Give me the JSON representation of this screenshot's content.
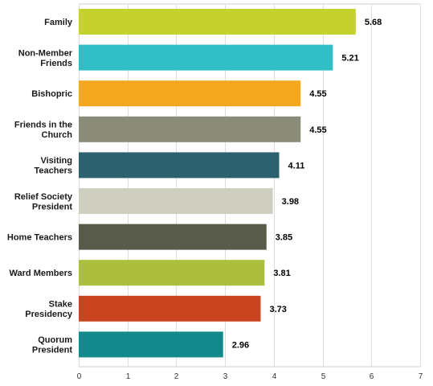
{
  "chart_data": {
    "type": "bar",
    "orientation": "horizontal",
    "categories": [
      [
        "Family"
      ],
      [
        "Non-Member",
        "Friends"
      ],
      [
        "Bishopric"
      ],
      [
        "Friends in the",
        "Church"
      ],
      [
        "Visiting",
        "Teachers"
      ],
      [
        "Relief Society",
        "President"
      ],
      [
        "Home Teachers"
      ],
      [
        "Ward Members"
      ],
      [
        "Stake",
        "Presidency"
      ],
      [
        "Quorum",
        "President"
      ]
    ],
    "values": [
      5.68,
      5.21,
      4.55,
      4.55,
      4.11,
      3.98,
      3.85,
      3.81,
      3.73,
      2.96
    ],
    "value_labels": [
      "5.68",
      "5.21",
      "4.55",
      "4.55",
      "4.11",
      "3.98",
      "3.85",
      "3.81",
      "3.73",
      "2.96"
    ],
    "colors": [
      "#c5d12e",
      "#30bfc4",
      "#f4a81f",
      "#8b8b79",
      "#2e6170",
      "#cfcfc1",
      "#585a4a",
      "#abbf3d",
      "#c9451f",
      "#12898a"
    ],
    "xlim": [
      0,
      7
    ],
    "xticks": [
      "0",
      "1",
      "2",
      "3",
      "4",
      "5",
      "6",
      "7"
    ],
    "grid": true,
    "legend": "none",
    "title": "",
    "xlabel": "",
    "ylabel": ""
  }
}
